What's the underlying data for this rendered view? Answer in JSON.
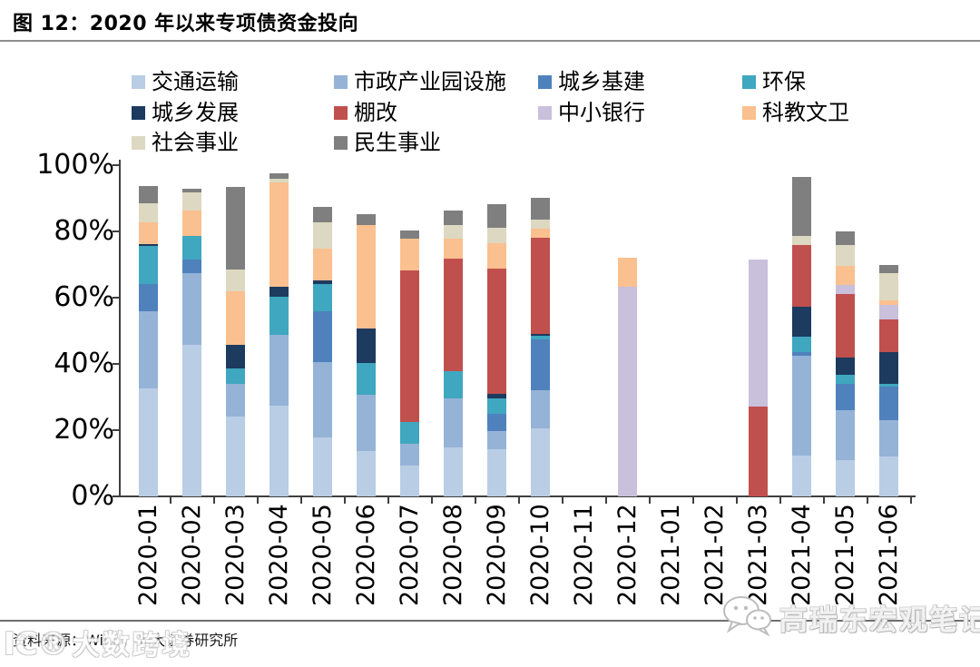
{
  "page": {
    "title": "图 12：2020 年以来专项债资金投向"
  },
  "footer": {
    "source": "资料来源：Wind，光大证券研究所"
  },
  "watermarks": {
    "bottom_left_logo": "IC®",
    "bottom_left_text": "大数跨境",
    "bottom_right_icon": "wechat-bubbles-icon",
    "bottom_right_text": "高瑞东宏观笔记"
  },
  "chart_data": {
    "type": "bar",
    "stacked": true,
    "unit": "percent",
    "grid": false,
    "legend_position": "top",
    "legend_columns": 4,
    "ylim": [
      0,
      100
    ],
    "y_ticks": [
      "100%",
      "80%",
      "60%",
      "40%",
      "20%",
      "0%"
    ],
    "categories": [
      "2020-01",
      "2020-02",
      "2020-03",
      "2020-04",
      "2020-05",
      "2020-06",
      "2020-07",
      "2020-08",
      "2020-09",
      "2020-10",
      "2020-11",
      "2020-12",
      "2021-01",
      "2021-02",
      "2021-03",
      "2021-04",
      "2021-05",
      "2021-06"
    ],
    "series": [
      {
        "name": "交通运输",
        "color": "#b9cde4",
        "values": [
          32.5,
          45.8,
          24.0,
          27.5,
          17.9,
          13.8,
          9.2,
          14.9,
          14.2,
          20.6,
          0,
          0,
          0,
          0,
          0,
          12.4,
          11.0,
          12.0
        ]
      },
      {
        "name": "市政产业园设施",
        "color": "#95b3d7",
        "values": [
          23.5,
          21.6,
          9.9,
          21.2,
          22.6,
          16.9,
          6.8,
          14.6,
          5.5,
          11.4,
          0,
          0,
          0,
          0,
          0,
          30.1,
          15.1,
          11.0
        ]
      },
      {
        "name": "城乡基建",
        "color": "#4f81bd",
        "values": [
          8.0,
          4.1,
          0.0,
          0.0,
          15.3,
          0.0,
          0.0,
          0.0,
          5.2,
          15.5,
          0,
          0,
          0,
          0,
          0,
          1.1,
          7.8,
          10.2
        ]
      },
      {
        "name": "环保",
        "color": "#3fa7bf",
        "values": [
          11.5,
          7.1,
          4.6,
          11.7,
          8.2,
          9.6,
          6.4,
          8.2,
          4.6,
          1.1,
          0,
          0,
          0,
          0,
          0,
          4.5,
          2.9,
          0.9
        ]
      },
      {
        "name": "城乡发展",
        "color": "#1d3a5f",
        "values": [
          0.7,
          0.0,
          7.3,
          2.9,
          1.1,
          10.5,
          0.0,
          0.0,
          1.5,
          0.5,
          0,
          0,
          0,
          0,
          0,
          9.1,
          5.1,
          9.4
        ]
      },
      {
        "name": "棚改",
        "color": "#c0504d",
        "values": [
          0.0,
          0.0,
          0.0,
          0.0,
          0.0,
          0.0,
          45.9,
          34.1,
          37.8,
          29.0,
          0,
          0,
          0,
          0,
          27.0,
          18.8,
          19.1,
          10.0
        ]
      },
      {
        "name": "中小银行",
        "color": "#c9c0dc",
        "values": [
          0.0,
          0.0,
          0.0,
          0.0,
          0.0,
          0.0,
          0.0,
          0.0,
          0.0,
          0.0,
          0,
          63.4,
          0,
          0,
          44.5,
          0.0,
          2.8,
          4.3
        ]
      },
      {
        "name": "科教文卫",
        "color": "#fbc08f",
        "values": [
          6.5,
          7.8,
          16.0,
          31.6,
          9.6,
          31.0,
          9.4,
          5.9,
          7.6,
          2.7,
          0,
          8.7,
          0,
          0,
          0,
          0.0,
          5.9,
          1.5
        ]
      },
      {
        "name": "社会事业",
        "color": "#ddd8c1",
        "values": [
          5.8,
          5.5,
          6.8,
          1.1,
          8.0,
          0.0,
          0.0,
          4.1,
          4.6,
          2.7,
          0,
          0,
          0,
          0,
          0,
          2.7,
          6.1,
          8.2
        ]
      },
      {
        "name": "民生事业",
        "color": "#7f7f7f",
        "values": [
          5.2,
          0.9,
          24.7,
          1.6,
          4.7,
          3.4,
          2.5,
          4.6,
          7.1,
          6.7,
          0,
          0,
          0,
          0,
          0,
          17.7,
          4.1,
          2.5
        ]
      }
    ]
  }
}
